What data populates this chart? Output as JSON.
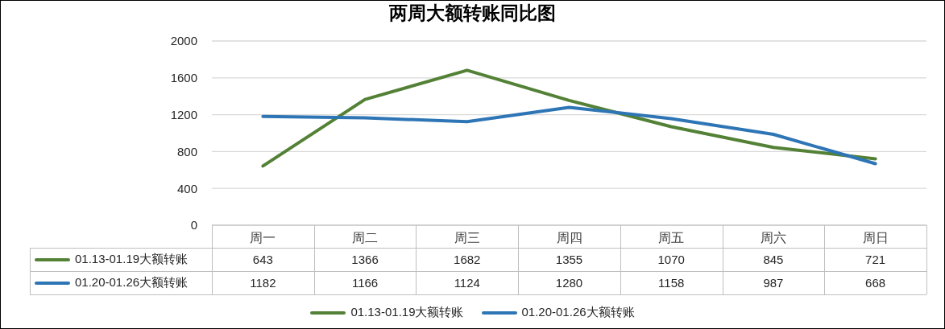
{
  "chart_data": {
    "type": "line",
    "title": "两周大额转账同比图",
    "categories": [
      "周一",
      "周二",
      "周三",
      "周四",
      "周五",
      "周六",
      "周日"
    ],
    "series": [
      {
        "name": "01.13-01.19大额转账",
        "color": "#538135",
        "values": [
          643,
          1366,
          1682,
          1355,
          1070,
          845,
          721
        ]
      },
      {
        "name": "01.20-01.26大额转账",
        "color": "#2e75b6",
        "values": [
          1182,
          1166,
          1124,
          1280,
          1158,
          987,
          668
        ]
      }
    ],
    "ylim": [
      0,
      2000
    ],
    "yticks": [
      0,
      400,
      800,
      1200,
      1600,
      2000
    ],
    "grid": "y",
    "legend": "bottom",
    "data_labels": true
  }
}
